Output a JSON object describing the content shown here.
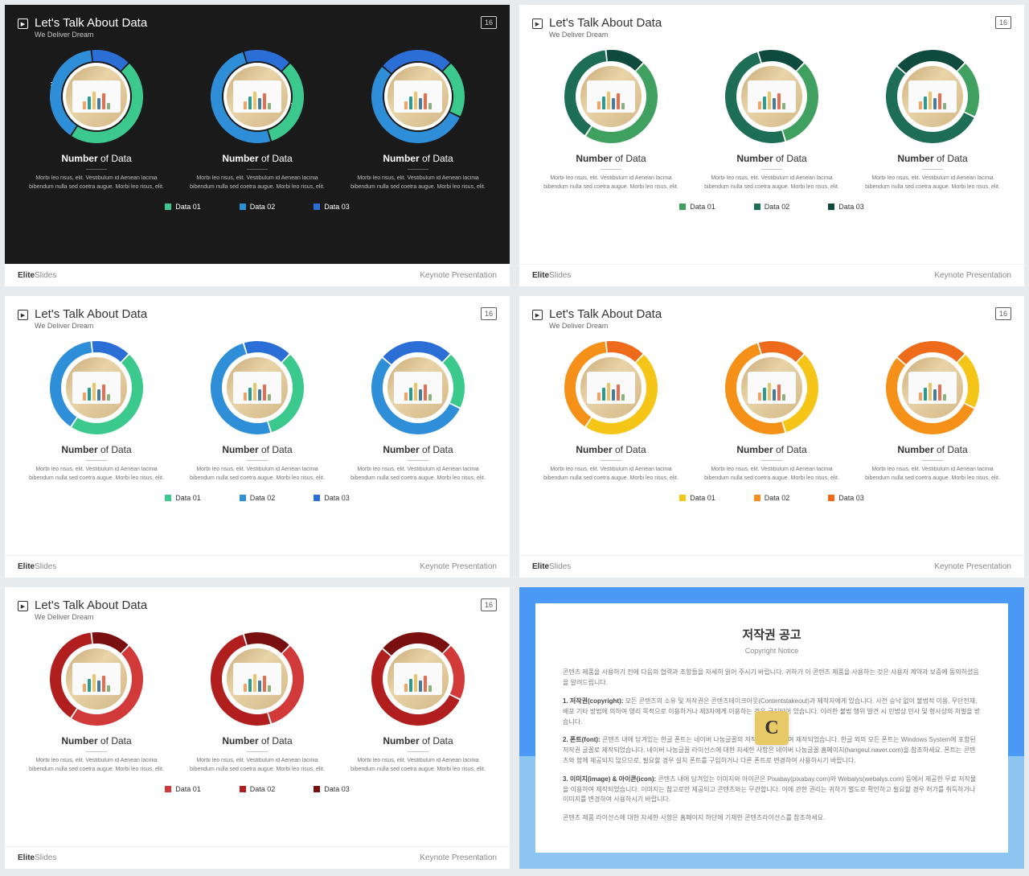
{
  "page_number": "16",
  "slide_title": "Let's Talk About Data",
  "slide_subtitle": "We Deliver Dream",
  "chart_caption_bold": "Number",
  "chart_caption_rest": " of Data",
  "chart_desc": "Morbi leo risus, elit. Vestibulum id Aenean lacinia bibendum nulla sed coetra augue. Morbi leo risus, elit.",
  "legend": [
    "Data 01",
    "Data 02",
    "Data 03"
  ],
  "brand_bold": "Elite",
  "brand_rest": "Slides",
  "footer_right": "Keynote Presentation",
  "donuts": [
    {
      "segs": [
        47,
        39,
        14
      ],
      "labels": [
        "47%",
        "39%",
        "14%"
      ]
    },
    {
      "segs": [
        33,
        50,
        17
      ],
      "labels": [
        "33%",
        "50%",
        "17%"
      ]
    },
    {
      "segs": [
        20,
        54,
        26
      ],
      "labels": [
        "20%",
        "54%",
        "26%"
      ]
    }
  ],
  "mini_bars": {
    "heights": [
      10,
      16,
      22,
      14,
      20,
      8
    ],
    "colors": [
      "#f4a261",
      "#2a9d8f",
      "#e9c46a",
      "#457b9d",
      "#e76f51",
      "#8ab17d"
    ]
  },
  "themes": [
    {
      "dark": true,
      "colors": [
        "#3cc98e",
        "#2e8fd8",
        "#2b6fd6"
      ]
    },
    {
      "dark": false,
      "colors": [
        "#3fa05f",
        "#1e6e56",
        "#0f4a3e"
      ]
    },
    {
      "dark": false,
      "colors": [
        "#3cc98e",
        "#2e8fd8",
        "#2b6fd6"
      ]
    },
    {
      "dark": false,
      "colors": [
        "#f5c518",
        "#f59018",
        "#ed6b1a"
      ]
    },
    {
      "dark": false,
      "colors": [
        "#d23a3a",
        "#b01e1e",
        "#7a0f0f"
      ]
    }
  ],
  "copyright": {
    "title_k": "저작권 공고",
    "title_e": "Copyright Notice",
    "intro": "콘텐츠 제품을 사용하기 전에 다음의 협력과 조항들을 자세히 읽어 주시기 바랍니다. 귀하가 이 콘텐츠 제품을 사용하는 것은 사용자 계약과 보증에 동의하셨음을 알려드립니다.",
    "p1_label": "1. 저작권(copyright):",
    "p1": " 모든 콘텐츠의 소유 및 저작권은 콘텐츠테이크아웃(Contentstakeout)과 제작자에게 있습니다. 사전 승낙 없이 불법적 이용, 무단전재, 배포 기타 방법에 의하여 영리 목적으로 이용하거나 제3자에게 이용하는 것은 금지되어 있습니다. 이러한 불법 행위 발견 시 민법상 민사 및 형사상의 처벌을 받습니다.",
    "p2_label": "2. 폰트(font):",
    "p2": " 콘텐츠 내에 담겨있는 한글 폰트는 네이버 나눔글꼴의 저작권을 준수하여 제작되었습니다. 한글 외의 모든 폰트는 Windows System에 포함된 저작권 글꼴로 제작되었습니다. 네이버 나눔글꼴 라이선스에 대한 자세한 사항은 네이버 나눔글꼴 홈페이지(hangeul.naver.com)을 참조하세요. 폰트는 콘텐츠와 함께 제공되지 않으므로, 필요할 경우 설치 폰트를 구입하거나 다른 폰트로 변경하여 사용하시기 바랍니다.",
    "p3_label": "3. 이미지(image) & 아이콘(icon):",
    "p3": " 콘텐츠 내에 담겨있는 이미지와 아이콘은 Pixabay(pixabay.com)와 Webalys(webalys.com) 등에서 제공한 무료 저작물을 이용하여 제작되었습니다. 이미지는 참고로만 제공되고 콘텐츠와는 무관합니다. 이에 관한 권리는 귀하가 별도로 확인하고 필요할 경우 허가를 취득하거나 이미지를 변경하여 사용하시기 바랍니다.",
    "outro": "콘텐츠 제품 라이선스에 대한 자세한 사항은 홈페이지 하단에 기재한 콘텐츠라이선스를 참조하세요."
  }
}
